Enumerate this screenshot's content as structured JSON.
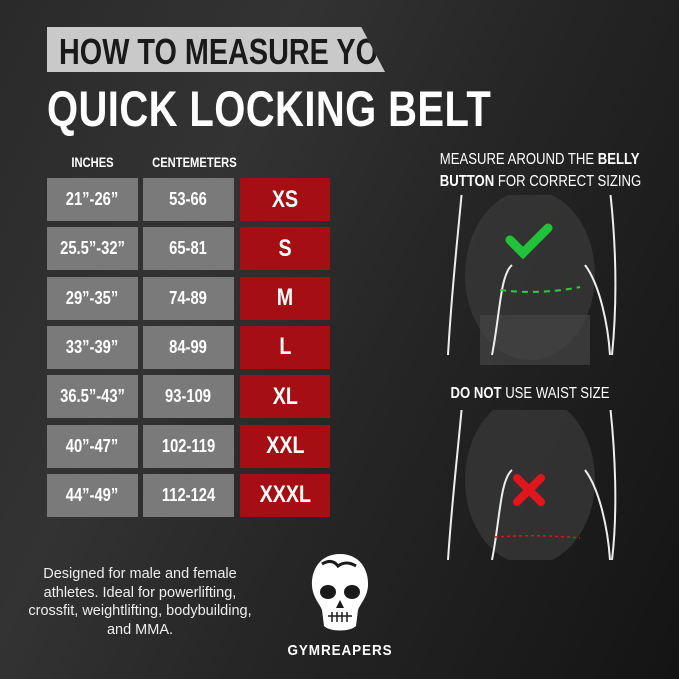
{
  "header": {
    "subtitle": "HOW TO MEASURE YOUR",
    "title": "QUICK LOCKING BELT"
  },
  "table": {
    "columns": [
      "INCHES",
      "CENTEMETERS"
    ],
    "rows": [
      {
        "inches": "21”-26”",
        "cm": "53-66",
        "size": "XS"
      },
      {
        "inches": "25.5”-32”",
        "cm": "65-81",
        "size": "S"
      },
      {
        "inches": "29”-35”",
        "cm": "74-89",
        "size": "M"
      },
      {
        "inches": "33”-39”",
        "cm": "84-99",
        "size": "L"
      },
      {
        "inches": "36.5”-43”",
        "cm": "93-109",
        "size": "XL"
      },
      {
        "inches": "40”-47”",
        "cm": "102-119",
        "size": "XXL"
      },
      {
        "inches": "44”-49”",
        "cm": "112-124",
        "size": "XXXL"
      }
    ]
  },
  "instructions": {
    "correct": {
      "line1_pre": "MEASURE AROUND THE ",
      "line1_bold": "BELLY",
      "line2_bold": "BUTTON",
      "line2_post": " FOR CORRECT SIZING",
      "icon": "check-icon",
      "color": "#22c33a"
    },
    "wrong": {
      "bold": "DO NOT",
      "post": " USE WAIST SIZE",
      "icon": "x-icon",
      "color": "#e0161c"
    }
  },
  "description": "Designed for male and female athletes. Ideal for powerlifting, crossfit, weightlifting, bodybuilding, and MMA.",
  "brand": {
    "name": "GYMREAPERS",
    "logo": "skull-logo"
  },
  "colors": {
    "size_cell": "#a50f13",
    "measure_cell": "#7a7a7a",
    "banner": "#c9c9c9"
  }
}
